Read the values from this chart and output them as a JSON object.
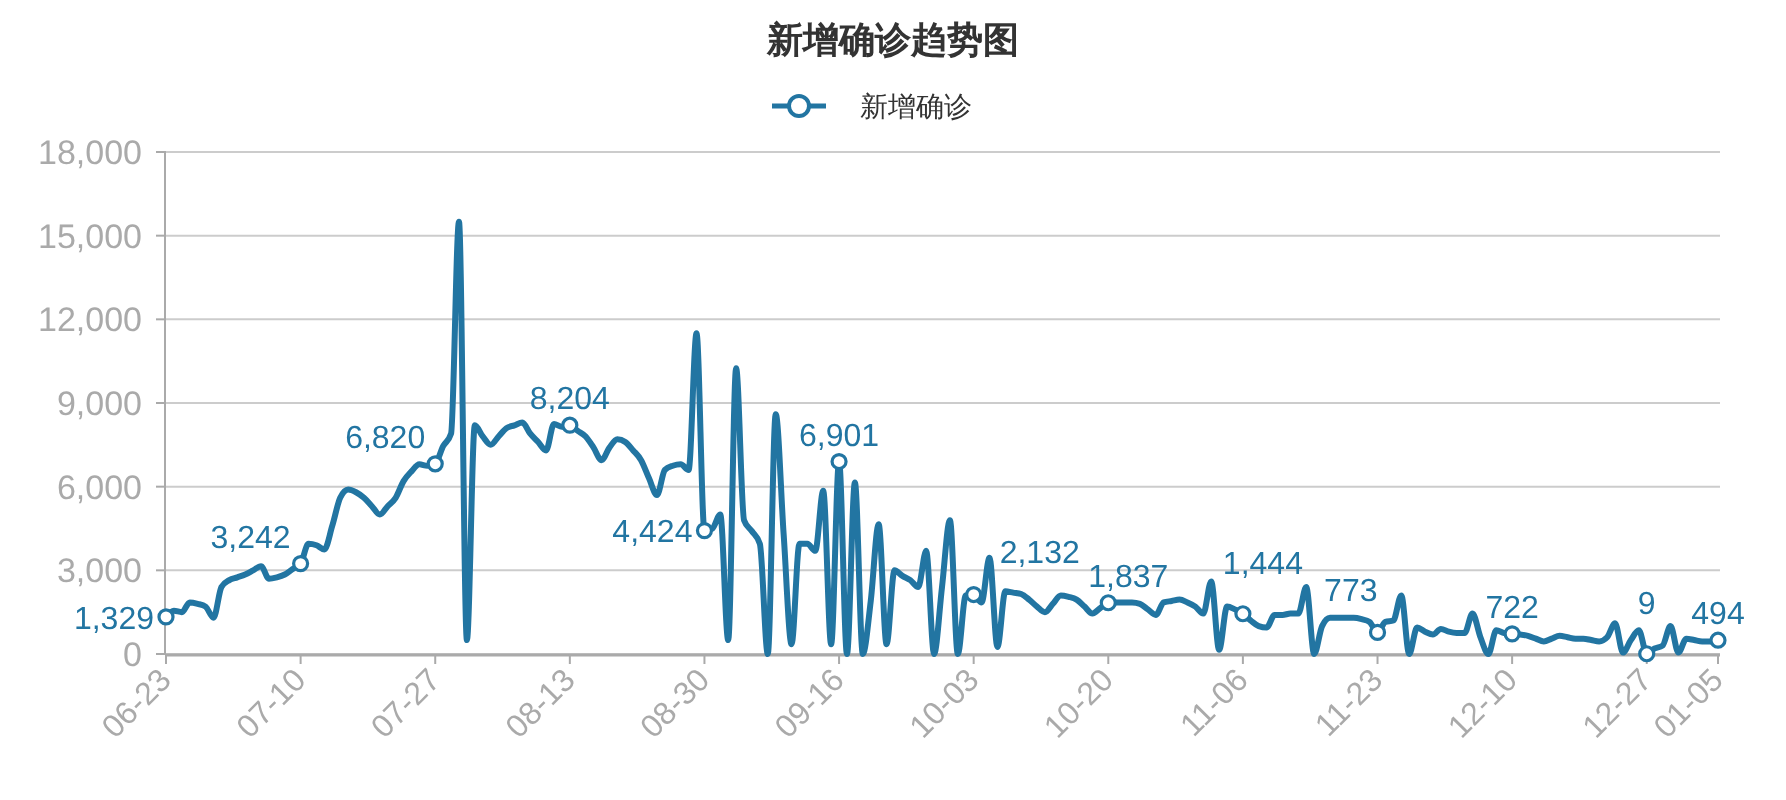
{
  "chart_data": {
    "type": "line",
    "title": "新增确诊趋势图",
    "categories": [
      "06-23",
      null,
      null,
      null,
      null,
      null,
      null,
      null,
      null,
      null,
      null,
      null,
      null,
      null,
      null,
      null,
      null,
      "07-10",
      null,
      null,
      null,
      null,
      null,
      null,
      null,
      null,
      null,
      null,
      null,
      null,
      null,
      null,
      null,
      null,
      "07-27",
      null,
      null,
      null,
      null,
      null,
      null,
      null,
      null,
      null,
      null,
      null,
      null,
      null,
      null,
      null,
      null,
      "08-13",
      null,
      null,
      null,
      null,
      null,
      null,
      null,
      null,
      null,
      null,
      null,
      null,
      null,
      null,
      null,
      null,
      "08-30",
      null,
      null,
      null,
      null,
      null,
      null,
      null,
      null,
      null,
      null,
      null,
      null,
      null,
      null,
      null,
      null,
      "09-16",
      null,
      null,
      null,
      null,
      null,
      null,
      null,
      null,
      null,
      null,
      null,
      null,
      null,
      null,
      null,
      null,
      "10-03",
      null,
      null,
      null,
      null,
      null,
      null,
      null,
      null,
      null,
      null,
      null,
      null,
      null,
      null,
      null,
      null,
      "10-20",
      null,
      null,
      null,
      null,
      null,
      null,
      null,
      null,
      null,
      null,
      null,
      null,
      null,
      null,
      null,
      null,
      "11-06",
      null,
      null,
      null,
      null,
      null,
      null,
      null,
      null,
      null,
      null,
      null,
      null,
      null,
      null,
      null,
      null,
      "11-23",
      null,
      null,
      null,
      null,
      null,
      null,
      null,
      null,
      null,
      null,
      null,
      null,
      null,
      null,
      null,
      null,
      "12-10",
      null,
      null,
      null,
      null,
      null,
      null,
      null,
      null,
      null,
      null,
      null,
      null,
      null,
      null,
      null,
      null,
      "12-27",
      null,
      null,
      null,
      null,
      null,
      null,
      null,
      null,
      "01-05"
    ],
    "series": [
      {
        "name": "新增确诊",
        "color": "#2275a2",
        "values": [
          1329,
          1550,
          1500,
          1850,
          1800,
          1700,
          1300,
          2400,
          2650,
          2750,
          2850,
          3000,
          3150,
          2700,
          2750,
          2850,
          3050,
          3242,
          3950,
          3900,
          3750,
          4600,
          5600,
          5900,
          5800,
          5600,
          5300,
          5000,
          5300,
          5600,
          6200,
          6550,
          6800,
          6750,
          6820,
          7450,
          7900,
          15500,
          500,
          8200,
          7800,
          7500,
          7800,
          8100,
          8200,
          8300,
          7900,
          7600,
          7300,
          8250,
          8150,
          8204,
          8000,
          7800,
          7400,
          6950,
          7400,
          7700,
          7600,
          7300,
          6950,
          6300,
          5700,
          6600,
          6750,
          6800,
          6600,
          11500,
          4424,
          4500,
          5000,
          500,
          10250,
          4800,
          4400,
          3950,
          0,
          8600,
          4300,
          350,
          3950,
          3950,
          3700,
          5850,
          350,
          6901,
          0,
          6150,
          0,
          1900,
          4650,
          350,
          3000,
          2800,
          2650,
          2400,
          3700,
          0,
          2400,
          4800,
          0,
          2100,
          2132,
          1850,
          3450,
          250,
          2250,
          2200,
          2150,
          1950,
          1700,
          1500,
          1800,
          2100,
          2050,
          1950,
          1700,
          1450,
          1650,
          1837,
          1850,
          1850,
          1850,
          1800,
          1600,
          1400,
          1850,
          1900,
          1950,
          1850,
          1700,
          1450,
          2600,
          150,
          1700,
          1600,
          1444,
          1200,
          1000,
          950,
          1400,
          1400,
          1450,
          1450,
          2400,
          0,
          1000,
          1300,
          1300,
          1300,
          1300,
          1250,
          1150,
          773,
          1150,
          1200,
          2100,
          0,
          950,
          800,
          700,
          900,
          800,
          750,
          750,
          1450,
          600,
          0,
          850,
          750,
          722,
          700,
          650,
          550,
          450,
          550,
          650,
          600,
          550,
          550,
          500,
          450,
          600,
          1100,
          50,
          500,
          850,
          9,
          200,
          300,
          1000,
          50,
          550,
          500,
          450,
          450,
          494
        ]
      },
      {
        "type": "scatter",
        "color": "#2275a2",
        "marker": "circle",
        "x": [
          "06-23",
          "07-10",
          "07-27",
          "08-13",
          "08-30",
          "09-16",
          "10-03",
          "10-20",
          "11-06",
          "11-23",
          "12-10",
          "12-27",
          "01-05"
        ],
        "values": [
          1329,
          3242,
          6820,
          8204,
          4424,
          6901,
          2132,
          1837,
          1444,
          773,
          722,
          9,
          494
        ],
        "value_labels": [
          "1,329",
          "3,242",
          "6,820",
          "8,204",
          "4,424",
          "6,901",
          "2,132",
          "1,837",
          "1,444",
          "773",
          "722",
          "9",
          "494"
        ]
      }
    ],
    "ylim": [
      0,
      18000
    ],
    "yticks": [
      {
        "value": 0,
        "label": "0"
      },
      {
        "value": 3000,
        "label": "3,000"
      },
      {
        "value": 6000,
        "label": "6,000"
      },
      {
        "value": 9000,
        "label": "9,000"
      },
      {
        "value": 12000,
        "label": "12,000"
      },
      {
        "value": 15000,
        "label": "15,000"
      },
      {
        "value": 18000,
        "label": "18,000"
      }
    ],
    "grid": "y",
    "legend": "top",
    "line_style": "solid"
  }
}
